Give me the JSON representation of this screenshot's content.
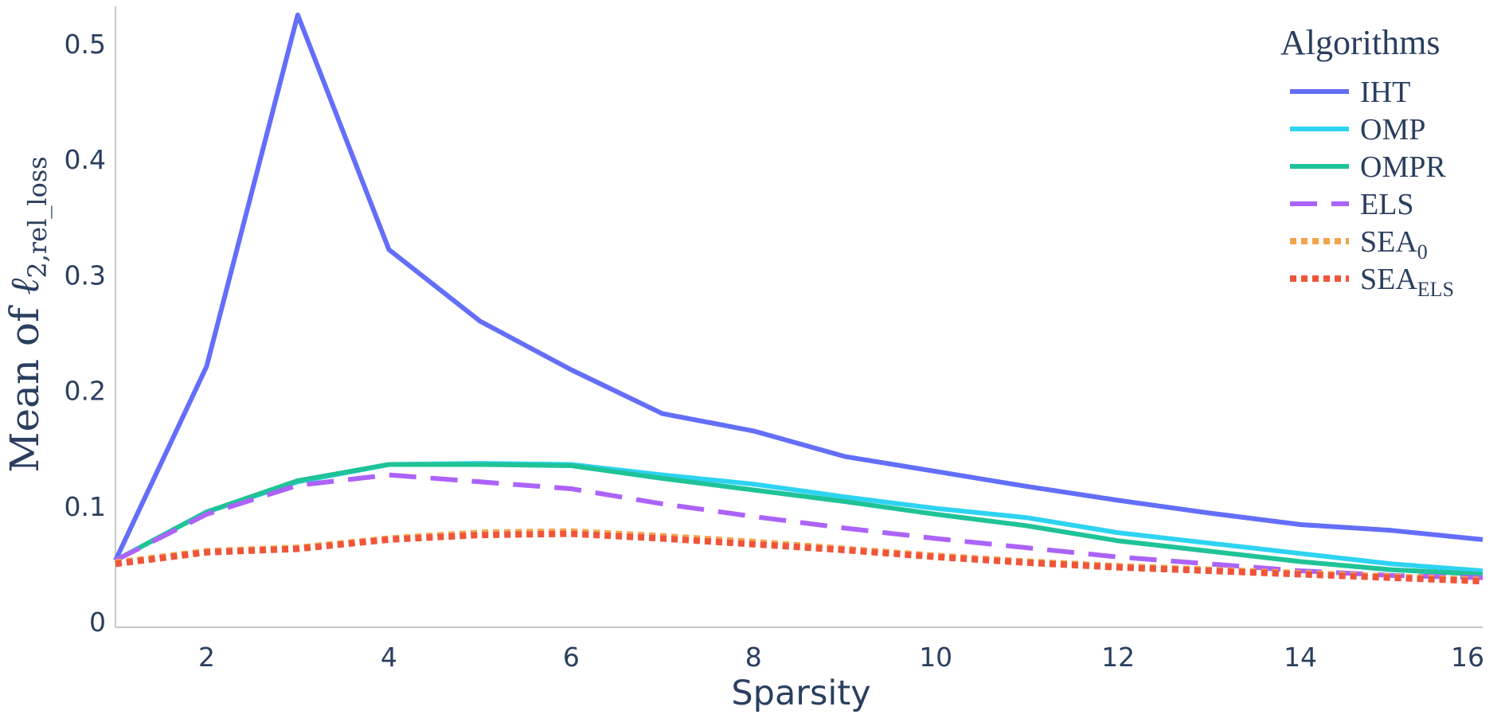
{
  "chart_data": {
    "type": "line",
    "title": "",
    "xlabel": "Sparsity",
    "ylabel": {
      "prefix": "Mean of ",
      "symbol": "ℓ",
      "subscript": "2,rel_loss"
    },
    "xlim": [
      1,
      16
    ],
    "ylim": [
      0,
      0.53
    ],
    "x_ticks": [
      2,
      4,
      6,
      8,
      10,
      12,
      14,
      16
    ],
    "x_tick_labels": [
      "2",
      "4",
      "6",
      "8",
      "10",
      "12",
      "14",
      "16"
    ],
    "y_ticks": [
      0,
      0.1,
      0.2,
      0.3,
      0.4,
      0.5
    ],
    "y_tick_labels": [
      "0",
      "0.1",
      "0.2",
      "0.3",
      "0.4",
      "0.5"
    ],
    "grid": false,
    "legend": {
      "title": "Algorithms",
      "placement": "top-right"
    },
    "x": [
      1,
      2,
      3,
      4,
      5,
      6,
      7,
      8,
      9,
      10,
      11,
      12,
      13,
      14,
      15,
      16
    ],
    "series": [
      {
        "name": "IHT",
        "name_main": "IHT",
        "name_sub": "",
        "color": "#636efa",
        "dash": "solid",
        "values": [
          0.053,
          0.221,
          0.525,
          0.322,
          0.26,
          0.218,
          0.18,
          0.165,
          0.143,
          0.13,
          0.117,
          0.105,
          0.094,
          0.084,
          0.079,
          0.071
        ]
      },
      {
        "name": "OMP",
        "name_main": "OMP",
        "name_sub": "",
        "color": "#2ed3f2",
        "dash": "solid",
        "values": [
          0.053,
          0.095,
          0.121,
          0.136,
          0.137,
          0.136,
          0.127,
          0.119,
          0.108,
          0.098,
          0.09,
          0.077,
          0.068,
          0.059,
          0.05,
          0.044
        ]
      },
      {
        "name": "OMPR",
        "name_main": "OMPR",
        "name_sub": "",
        "color": "#1fc397",
        "dash": "solid",
        "values": [
          0.053,
          0.095,
          0.122,
          0.136,
          0.136,
          0.135,
          0.124,
          0.114,
          0.104,
          0.093,
          0.083,
          0.07,
          0.061,
          0.052,
          0.045,
          0.041
        ]
      },
      {
        "name": "ELS",
        "name_main": "ELS",
        "name_sub": "",
        "color": "#ab63fa",
        "dash": "dash",
        "values": [
          0.053,
          0.093,
          0.118,
          0.127,
          0.121,
          0.115,
          0.102,
          0.091,
          0.081,
          0.072,
          0.064,
          0.056,
          0.05,
          0.044,
          0.04,
          0.038
        ]
      },
      {
        "name": "SEA0",
        "name_main": "SEA",
        "name_sub": "0",
        "color": "#f4a44b",
        "dash": "dot",
        "values": [
          0.051,
          0.061,
          0.064,
          0.072,
          0.077,
          0.078,
          0.074,
          0.069,
          0.063,
          0.057,
          0.052,
          0.048,
          0.045,
          0.042,
          0.039,
          0.036
        ]
      },
      {
        "name": "SEAELS",
        "name_main": "SEA",
        "name_sub": "ELS",
        "color": "#ef553b",
        "dash": "dot",
        "values": [
          0.05,
          0.06,
          0.063,
          0.071,
          0.075,
          0.076,
          0.072,
          0.067,
          0.062,
          0.056,
          0.051,
          0.047,
          0.044,
          0.041,
          0.038,
          0.035
        ]
      }
    ]
  }
}
